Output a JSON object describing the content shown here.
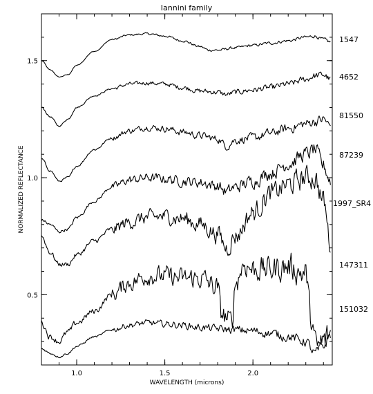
{
  "chart_data": {
    "type": "line",
    "title": "Iannini family",
    "xlabel": "WAVELENGTH (microns)",
    "ylabel": "NORMALIZED REFLECTANCE",
    "xlim": [
      0.8,
      2.45
    ],
    "ylim": [
      0.2,
      1.7
    ],
    "xticks": [
      1.0,
      1.5,
      2.0
    ],
    "xtick_labels": [
      "1.0",
      "1.5",
      "2.0"
    ],
    "yticks": [
      0.5,
      1.0,
      1.5
    ],
    "ytick_labels": [
      "0.5",
      "1.0",
      "1.5"
    ],
    "grid": false,
    "legend": "none",
    "series_labels_position": "right of plot",
    "series": [
      {
        "name": "1547",
        "points": [
          [
            0.8,
            1.5
          ],
          [
            0.85,
            1.46
          ],
          [
            0.9,
            1.43
          ],
          [
            0.95,
            1.44
          ],
          [
            1.0,
            1.48
          ],
          [
            1.1,
            1.54
          ],
          [
            1.2,
            1.59
          ],
          [
            1.3,
            1.61
          ],
          [
            1.4,
            1.615
          ],
          [
            1.5,
            1.605
          ],
          [
            1.6,
            1.585
          ],
          [
            1.7,
            1.56
          ],
          [
            1.75,
            1.545
          ],
          [
            1.8,
            1.545
          ],
          [
            1.9,
            1.555
          ],
          [
            2.0,
            1.565
          ],
          [
            2.1,
            1.575
          ],
          [
            2.2,
            1.585
          ],
          [
            2.3,
            1.6
          ],
          [
            2.35,
            1.605
          ],
          [
            2.4,
            1.59
          ],
          [
            2.44,
            1.58
          ]
        ],
        "noise": 0.004
      },
      {
        "name": "4652",
        "points": [
          [
            0.8,
            1.3
          ],
          [
            0.85,
            1.26
          ],
          [
            0.9,
            1.22
          ],
          [
            0.95,
            1.25
          ],
          [
            1.0,
            1.3
          ],
          [
            1.1,
            1.35
          ],
          [
            1.2,
            1.38
          ],
          [
            1.3,
            1.4
          ],
          [
            1.4,
            1.405
          ],
          [
            1.5,
            1.4
          ],
          [
            1.6,
            1.385
          ],
          [
            1.7,
            1.37
          ],
          [
            1.8,
            1.365
          ],
          [
            1.85,
            1.355
          ],
          [
            1.9,
            1.365
          ],
          [
            2.0,
            1.375
          ],
          [
            2.1,
            1.385
          ],
          [
            2.2,
            1.4
          ],
          [
            2.3,
            1.42
          ],
          [
            2.35,
            1.435
          ],
          [
            2.4,
            1.44
          ],
          [
            2.44,
            1.42
          ]
        ],
        "noise": 0.008
      },
      {
        "name": "81550",
        "points": [
          [
            0.8,
            1.08
          ],
          [
            0.85,
            1.03
          ],
          [
            0.9,
            0.985
          ],
          [
            0.95,
            1.0
          ],
          [
            1.0,
            1.05
          ],
          [
            1.1,
            1.12
          ],
          [
            1.2,
            1.17
          ],
          [
            1.3,
            1.2
          ],
          [
            1.4,
            1.215
          ],
          [
            1.5,
            1.21
          ],
          [
            1.6,
            1.195
          ],
          [
            1.7,
            1.18
          ],
          [
            1.8,
            1.165
          ],
          [
            1.85,
            1.135
          ],
          [
            1.9,
            1.16
          ],
          [
            2.0,
            1.17
          ],
          [
            2.1,
            1.19
          ],
          [
            2.2,
            1.21
          ],
          [
            2.3,
            1.23
          ],
          [
            2.35,
            1.24
          ],
          [
            2.4,
            1.25
          ],
          [
            2.44,
            1.22
          ]
        ],
        "noise": 0.012
      },
      {
        "name": "87239",
        "points": [
          [
            0.8,
            0.82
          ],
          [
            0.85,
            0.8
          ],
          [
            0.9,
            0.77
          ],
          [
            0.95,
            0.78
          ],
          [
            1.0,
            0.83
          ],
          [
            1.1,
            0.9
          ],
          [
            1.2,
            0.96
          ],
          [
            1.3,
            0.99
          ],
          [
            1.4,
            1.0
          ],
          [
            1.5,
            0.995
          ],
          [
            1.6,
            0.985
          ],
          [
            1.7,
            0.98
          ],
          [
            1.8,
            0.965
          ],
          [
            1.85,
            0.94
          ],
          [
            1.9,
            0.96
          ],
          [
            2.0,
            0.985
          ],
          [
            2.1,
            1.02
          ],
          [
            2.2,
            1.06
          ],
          [
            2.3,
            1.1
          ],
          [
            2.35,
            1.12
          ],
          [
            2.4,
            1.05
          ],
          [
            2.44,
            0.99
          ]
        ],
        "noise": 0.018
      },
      {
        "name": "1997_SR4",
        "points": [
          [
            0.8,
            0.75
          ],
          [
            0.85,
            0.68
          ],
          [
            0.9,
            0.63
          ],
          [
            0.95,
            0.63
          ],
          [
            1.0,
            0.67
          ],
          [
            1.1,
            0.73
          ],
          [
            1.2,
            0.78
          ],
          [
            1.3,
            0.81
          ],
          [
            1.4,
            0.83
          ],
          [
            1.5,
            0.835
          ],
          [
            1.6,
            0.825
          ],
          [
            1.7,
            0.8
          ],
          [
            1.8,
            0.76
          ],
          [
            1.85,
            0.7
          ],
          [
            1.9,
            0.75
          ],
          [
            2.0,
            0.85
          ],
          [
            2.1,
            0.93
          ],
          [
            2.2,
            0.97
          ],
          [
            2.3,
            1.0
          ],
          [
            2.35,
            1.0
          ],
          [
            2.4,
            0.9
          ],
          [
            2.44,
            0.72
          ]
        ],
        "noise": 0.028
      },
      {
        "name": "147311",
        "points": [
          [
            0.8,
            0.38
          ],
          [
            0.85,
            0.32
          ],
          [
            0.9,
            0.3
          ],
          [
            0.95,
            0.34
          ],
          [
            1.0,
            0.38
          ],
          [
            1.1,
            0.43
          ],
          [
            1.2,
            0.5
          ],
          [
            1.3,
            0.55
          ],
          [
            1.4,
            0.58
          ],
          [
            1.5,
            0.58
          ],
          [
            1.6,
            0.57
          ],
          [
            1.7,
            0.57
          ],
          [
            1.8,
            0.53
          ],
          [
            1.82,
            0.42
          ],
          [
            1.88,
            0.38
          ],
          [
            1.9,
            0.55
          ],
          [
            1.95,
            0.63
          ],
          [
            2.0,
            0.61
          ],
          [
            2.1,
            0.61
          ],
          [
            2.2,
            0.62
          ],
          [
            2.3,
            0.59
          ],
          [
            2.33,
            0.4
          ],
          [
            2.36,
            0.27
          ],
          [
            2.4,
            0.3
          ],
          [
            2.44,
            0.33
          ]
        ],
        "noise": 0.035
      },
      {
        "name": "151032",
        "points": [
          [
            0.8,
            0.27
          ],
          [
            0.85,
            0.25
          ],
          [
            0.9,
            0.235
          ],
          [
            0.95,
            0.25
          ],
          [
            1.0,
            0.28
          ],
          [
            1.1,
            0.32
          ],
          [
            1.2,
            0.35
          ],
          [
            1.3,
            0.37
          ],
          [
            1.4,
            0.38
          ],
          [
            1.5,
            0.375
          ],
          [
            1.6,
            0.37
          ],
          [
            1.7,
            0.36
          ],
          [
            1.8,
            0.355
          ],
          [
            1.9,
            0.35
          ],
          [
            2.0,
            0.345
          ],
          [
            2.1,
            0.335
          ],
          [
            2.2,
            0.32
          ],
          [
            2.3,
            0.3
          ],
          [
            2.35,
            0.25
          ],
          [
            2.4,
            0.28
          ],
          [
            2.44,
            0.33
          ]
        ],
        "noise": 0.012
      }
    ]
  }
}
